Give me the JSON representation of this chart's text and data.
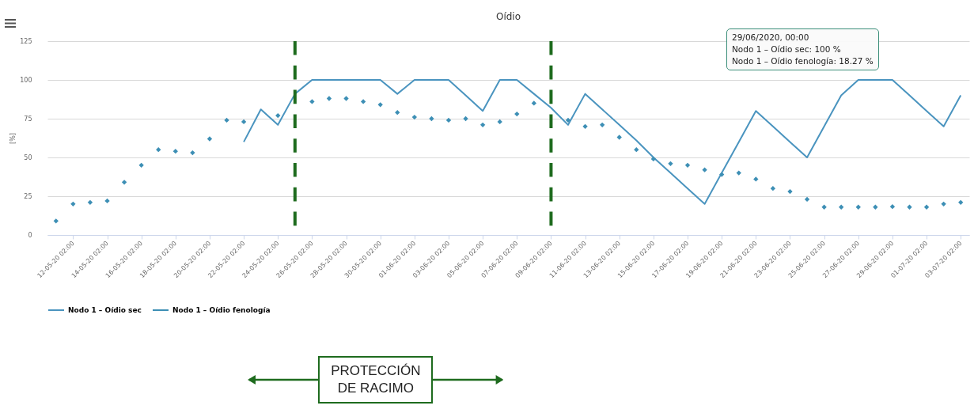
{
  "chart_data": {
    "type": "line",
    "title": "Oídio",
    "ylabel": "[%]",
    "x": [
      "2020-05-11",
      "2020-05-12",
      "2020-05-13",
      "2020-05-14",
      "2020-05-15",
      "2020-05-16",
      "2020-05-17",
      "2020-05-18",
      "2020-05-19",
      "2020-05-20",
      "2020-05-21",
      "2020-05-22",
      "2020-05-23",
      "2020-05-24",
      "2020-05-25",
      "2020-05-26",
      "2020-05-27",
      "2020-05-28",
      "2020-05-29",
      "2020-05-30",
      "2020-05-31",
      "2020-06-01",
      "2020-06-02",
      "2020-06-03",
      "2020-06-04",
      "2020-06-05",
      "2020-06-06",
      "2020-06-07",
      "2020-06-08",
      "2020-06-09",
      "2020-06-10",
      "2020-06-11",
      "2020-06-12",
      "2020-06-13",
      "2020-06-14",
      "2020-06-15",
      "2020-06-16",
      "2020-06-17",
      "2020-06-18",
      "2020-06-19",
      "2020-06-20",
      "2020-06-21",
      "2020-06-22",
      "2020-06-23",
      "2020-06-24",
      "2020-06-25",
      "2020-06-26",
      "2020-06-27",
      "2020-06-28",
      "2020-06-29",
      "2020-06-30",
      "2020-07-01",
      "2020-07-02",
      "2020-07-03"
    ],
    "series": [
      {
        "name": "Nodo 1 – Oídio sec",
        "color": "#4a94bf",
        "values": [
          null,
          null,
          null,
          null,
          null,
          null,
          null,
          null,
          null,
          null,
          null,
          60,
          81,
          71,
          91,
          100,
          100,
          100,
          100,
          100,
          91,
          100,
          100,
          100,
          90,
          80,
          100,
          100,
          91,
          82,
          71,
          91,
          81,
          71,
          61,
          50,
          40,
          30,
          20,
          40,
          60,
          80,
          70,
          60,
          50,
          70,
          90,
          100,
          100,
          100,
          90,
          80,
          70,
          90
        ]
      },
      {
        "name": "Nodo 1 – Oídio fenología",
        "type": "scatter",
        "marker": "diamond",
        "color": "#3d8fb5",
        "values": [
          9,
          20,
          21,
          22,
          34,
          45,
          55,
          54,
          53,
          62,
          74,
          73,
          null,
          77,
          null,
          86,
          88,
          88,
          86,
          84,
          79,
          76,
          75,
          74,
          75,
          71,
          73,
          78,
          85,
          null,
          74,
          70,
          71,
          63,
          55,
          49,
          46,
          45,
          42,
          39,
          40,
          36,
          30,
          28,
          23,
          18,
          18,
          18,
          18,
          18.27,
          18,
          18,
          20,
          21
        ]
      }
    ],
    "xlim": [
      "2020-05-10T12:00",
      "2020-07-03T12:00"
    ],
    "xticks": [
      {
        "value": "2020-05-12",
        "label": "12-05-20 02:00"
      },
      {
        "value": "2020-05-14",
        "label": "14-05-20 02:00"
      },
      {
        "value": "2020-05-16",
        "label": "16-05-20 02:00"
      },
      {
        "value": "2020-05-18",
        "label": "18-05-20 02:00"
      },
      {
        "value": "2020-05-20",
        "label": "20-05-20 02:00"
      },
      {
        "value": "2020-05-22",
        "label": "22-05-20 02:00"
      },
      {
        "value": "2020-05-24",
        "label": "24-05-20 02:00"
      },
      {
        "value": "2020-05-26",
        "label": "26-05-20 02:00"
      },
      {
        "value": "2020-05-28",
        "label": "28-05-20 02:00"
      },
      {
        "value": "2020-05-30",
        "label": "30-05-20 02:00"
      },
      {
        "value": "2020-06-01",
        "label": "01-06-20 02:00"
      },
      {
        "value": "2020-06-03",
        "label": "03-06-20 02:00"
      },
      {
        "value": "2020-06-05",
        "label": "05-06-20 02:00"
      },
      {
        "value": "2020-06-07",
        "label": "07-06-20 02:00"
      },
      {
        "value": "2020-06-09",
        "label": "09-06-20 02:00"
      },
      {
        "value": "2020-06-11",
        "label": "11-06-20 02:00"
      },
      {
        "value": "2020-06-13",
        "label": "13-06-20 02:00"
      },
      {
        "value": "2020-06-15",
        "label": "15-06-20 02:00"
      },
      {
        "value": "2020-06-17",
        "label": "17-06-20 02:00"
      },
      {
        "value": "2020-06-19",
        "label": "19-06-20 02:00"
      },
      {
        "value": "2020-06-21",
        "label": "21-06-20 02:00"
      },
      {
        "value": "2020-06-23",
        "label": "23-06-20 02:00"
      },
      {
        "value": "2020-06-25",
        "label": "25-06-20 02:00"
      },
      {
        "value": "2020-06-27",
        "label": "27-06-20 02:00"
      },
      {
        "value": "2020-06-29",
        "label": "29-06-20 02:00"
      },
      {
        "value": "2020-07-01",
        "label": "01-07-20 02:00"
      },
      {
        "value": "2020-07-03",
        "label": "03-07-20 02:00"
      }
    ],
    "ylim": [
      0,
      125
    ],
    "yticks": [
      0,
      25,
      50,
      75,
      100,
      125
    ],
    "grid": "y",
    "legend": "bottom",
    "ref_lines": [
      {
        "axis": "x",
        "value": "2020-05-25",
        "color": "#1e6b1e",
        "line_style": "dashed"
      },
      {
        "axis": "x",
        "value": "2020-06-09",
        "color": "#1e6b1e",
        "line_style": "dashed"
      }
    ],
    "annotations": [
      "29/06/2020, 00:00\nNodo 1 – Oídio sec: 100 %\nNodo 1 – Oídio fenología: 18.27 %",
      "PROTECCIÓN DE RACIMO"
    ]
  }
}
